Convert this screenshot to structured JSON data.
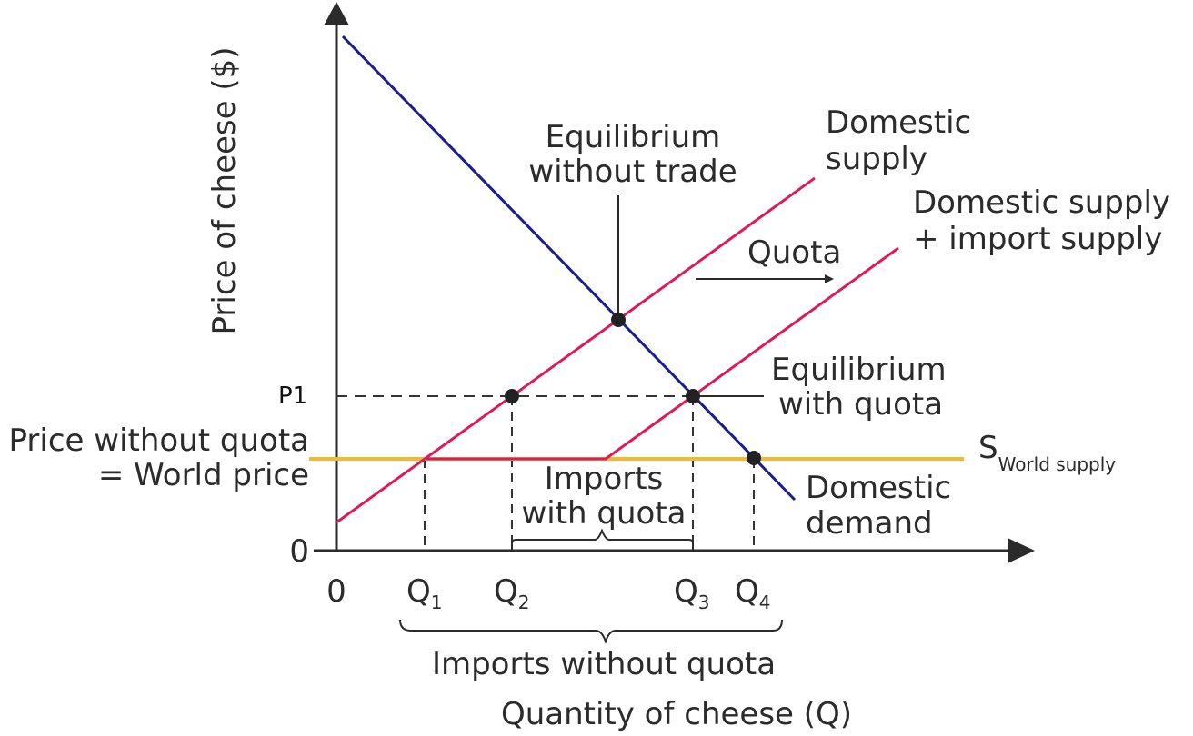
{
  "axes": {
    "y_label": "Price of cheese ($)",
    "x_label": "Quantity of cheese (Q)",
    "origin_x": "0",
    "origin_y": "0",
    "price_p1": "P1",
    "world_price_line1": "Price without quota",
    "world_price_line2": "= World price",
    "q1": "Q",
    "q1_sub": "1",
    "q2": "Q",
    "q2_sub": "2",
    "q3": "Q",
    "q3_sub": "3",
    "q4": "Q",
    "q4_sub": "4"
  },
  "curves": {
    "domestic_supply_line1": "Domestic",
    "domestic_supply_line2": "supply",
    "supply_plus_import_line1": "Domestic supply",
    "supply_plus_import_line2": "+ import supply",
    "domestic_demand_line1": "Domestic",
    "domestic_demand_line2": "demand",
    "world_supply_main": "S",
    "world_supply_sub": "World supply"
  },
  "annotations": {
    "quota": "Quota",
    "eq_no_trade_line1": "Equilibrium",
    "eq_no_trade_line2": "without trade",
    "eq_quota_line1": "Equilibrium",
    "eq_quota_line2": "with quota",
    "imports_quota_line1": "Imports",
    "imports_quota_line2": "with quota",
    "imports_no_quota": "Imports without quota"
  },
  "colors": {
    "demand": "#1a1f8c",
    "supply": "#e0195a",
    "world_supply": "#f7b92b",
    "axis": "#2b2b2b"
  }
}
